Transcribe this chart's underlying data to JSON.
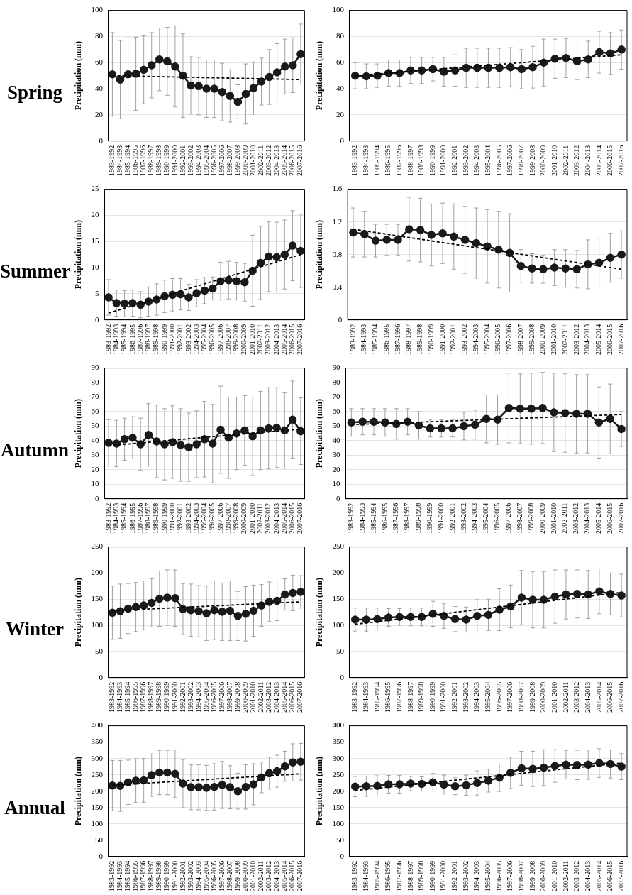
{
  "chart_data": [
    {
      "type": "line",
      "title": "Spring",
      "ylabel": "Precipitation (mm)",
      "categories": [
        "1983-1992",
        "1984-1993",
        "1985-1994",
        "1986-1995",
        "1987-1996",
        "1988-1997",
        "1989-1998",
        "1990-1999",
        "1991-2000",
        "1992-2001",
        "1993-2002",
        "1994-2003",
        "1995-2004",
        "1996-2005",
        "1997-2006",
        "1998-2007",
        "1999-2008",
        "2000-2009",
        "2001-2010",
        "2002-2011",
        "2003-2012",
        "2004-2013",
        "2005-2014",
        "2006-2015",
        "2007-2016"
      ],
      "ylim": [
        0,
        100
      ],
      "yticks": [
        0,
        20,
        40,
        60,
        80,
        100
      ],
      "grid": "y",
      "marker": "circle",
      "line_style": "solid",
      "series": [
        {
          "color": "#1a1a1a",
          "values": [
            51,
            47,
            51,
            51.5,
            54.5,
            58,
            62.5,
            61,
            57,
            50,
            42.5,
            42,
            40,
            40,
            37.5,
            34.5,
            30,
            36,
            40.5,
            45.5,
            49,
            52.5,
            57,
            58,
            66.5
          ],
          "errors": [
            32,
            30,
            28,
            28,
            26,
            25,
            24,
            26,
            31,
            32,
            22,
            22,
            22,
            22,
            22,
            20,
            13,
            23,
            20,
            18,
            21,
            22,
            21,
            21,
            23
          ]
        },
        {
          "type": "line",
          "color": "#000000",
          "line_style": "dashed",
          "marker": "none",
          "x": [
            "1983-1992",
            "2007-2016"
          ],
          "values": [
            50,
            47
          ]
        }
      ]
    },
    {
      "type": "line",
      "ylabel": "Precipitation (mm)",
      "categories": [
        "1983-1992",
        "1984-1993",
        "1985-1994",
        "1986-1995",
        "1987-1996",
        "1988-1997",
        "1989-1998",
        "1990-1999",
        "1991-2000",
        "1992-2001",
        "1993-2002",
        "1994-2003",
        "1995-2004",
        "1996-2005",
        "1997-2006",
        "1998-2007",
        "1999-2008",
        "2000-2009",
        "2001-2010",
        "2002-2011",
        "2003-2012",
        "2004-2013",
        "2005-2014",
        "2006-2015",
        "2007-2016"
      ],
      "ylim": [
        0,
        100
      ],
      "yticks": [
        0,
        20,
        40,
        60,
        80,
        100
      ],
      "grid": "y",
      "marker": "circle",
      "line_style": "solid",
      "series": [
        {
          "color": "#1a1a1a",
          "values": [
            50,
            49.5,
            50,
            52,
            52,
            54,
            54,
            55,
            53,
            54,
            56,
            56,
            56,
            56,
            56.5,
            55,
            56.5,
            60,
            63,
            63.5,
            61,
            62.5,
            68,
            67,
            70
          ],
          "errors": [
            10,
            9.5,
            9,
            10,
            10,
            10,
            10,
            9,
            11,
            12,
            15,
            15,
            15,
            15,
            15,
            15,
            16,
            18,
            15,
            15,
            14,
            14,
            16,
            16,
            15
          ]
        },
        {
          "type": "line",
          "color": "#000000",
          "line_style": "dashed",
          "marker": "none",
          "x": [
            "1983-1992",
            "2007-2016"
          ],
          "values": [
            50,
            66
          ]
        }
      ]
    },
    {
      "type": "line",
      "title": "Summer",
      "ylabel": "Precipitation (mm)",
      "categories": [
        "1983-1992",
        "1984-1993",
        "1985-1994",
        "1986-1995",
        "1987-1996",
        "1988-1997",
        "1989-1998",
        "1990-1999",
        "1991-2000",
        "1992-2001",
        "1993-2002",
        "1994-2003",
        "1995-2004",
        "1996-2005",
        "1997-2006",
        "1998-2007",
        "1999-2008",
        "2000-2009",
        "2001-2010",
        "2002-2011",
        "2003-2012",
        "2004-2013",
        "2005-2014",
        "2006-2015",
        "2007-2016"
      ],
      "ylim": [
        0,
        25
      ],
      "yticks": [
        0,
        5,
        10,
        15,
        20,
        25
      ],
      "grid": "y",
      "marker": "circle",
      "line_style": "solid",
      "series": [
        {
          "color": "#1a1a1a",
          "values": [
            4.3,
            3.2,
            3.1,
            3.2,
            2.9,
            3.5,
            3.9,
            4.5,
            4.8,
            4.9,
            4.3,
            5.1,
            5.6,
            6,
            7.4,
            7.6,
            7.4,
            7.2,
            9.4,
            10.9,
            12.1,
            12,
            12.5,
            14.2,
            13.2
          ],
          "errors": [
            3.4,
            2.5,
            2.5,
            2.5,
            2.5,
            2.8,
            3,
            3.1,
            3.1,
            3,
            2.5,
            2.6,
            2.5,
            2.2,
            3.6,
            3.6,
            3.6,
            3.6,
            6.8,
            7,
            6.7,
            6.7,
            6.6,
            6.7,
            7
          ]
        },
        {
          "type": "line",
          "color": "#000000",
          "line_style": "dashed",
          "marker": "none",
          "x": [
            "1983-1992",
            "2007-2016"
          ],
          "values": [
            1.3,
            12.5
          ]
        }
      ]
    },
    {
      "type": "line",
      "ylabel": "Precipitation (mm)",
      "categories": [
        "1983-1992",
        "1984-1993",
        "1985-1994",
        "1986-1995",
        "1987-1996",
        "1988-1997",
        "1989-1998",
        "1990-1999",
        "1991-2000",
        "1992-2001",
        "1993-2002",
        "1994-2003",
        "1995-2004",
        "1996-2005",
        "1997-2006",
        "1998-2007",
        "1999-2008",
        "2000-2009",
        "2001-2010",
        "2002-2011",
        "2003-2012",
        "2004-2013",
        "2005-2014",
        "2006-2015",
        "2007-2016"
      ],
      "ylim": [
        0,
        1.6
      ],
      "yticks": [
        0,
        0.4,
        0.8,
        1.2,
        1.6
      ],
      "grid": "y",
      "marker": "circle",
      "line_style": "solid",
      "series": [
        {
          "color": "#1a1a1a",
          "values": [
            1.07,
            1.05,
            0.97,
            0.98,
            0.98,
            1.11,
            1.1,
            1.04,
            1.06,
            1.02,
            0.98,
            0.94,
            0.9,
            0.86,
            0.82,
            0.66,
            0.63,
            0.62,
            0.64,
            0.63,
            0.62,
            0.68,
            0.7,
            0.76,
            0.8
          ],
          "errors": [
            0.3,
            0.28,
            0.2,
            0.19,
            0.19,
            0.39,
            0.39,
            0.38,
            0.37,
            0.4,
            0.41,
            0.43,
            0.45,
            0.47,
            0.48,
            0.2,
            0.18,
            0.17,
            0.22,
            0.23,
            0.23,
            0.3,
            0.3,
            0.3,
            0.29
          ]
        },
        {
          "type": "line",
          "color": "#000000",
          "line_style": "dashed",
          "marker": "none",
          "x": [
            "1983-1992",
            "2007-2016"
          ],
          "values": [
            1.11,
            0.62
          ]
        }
      ]
    },
    {
      "type": "line",
      "title": "Autumn",
      "ylabel": "Precipitation (mm)",
      "categories": [
        "1983-1992",
        "1984-1993",
        "1985-1994",
        "1986-1995",
        "1987-1996",
        "1988-1997",
        "1989-1998",
        "1990-1999",
        "1991-2000",
        "1992-2001",
        "1993-2002",
        "1994-2003",
        "1995-2004",
        "1996-2005",
        "1997-2006",
        "1998-2007",
        "1999-2008",
        "2000-2009",
        "2001-2010",
        "2002-2011",
        "2003-2012",
        "2004-2013",
        "2005-2014",
        "2006-2015",
        "2007-2016"
      ],
      "ylim": [
        0,
        90
      ],
      "yticks": [
        0,
        10,
        20,
        30,
        40,
        50,
        60,
        70,
        80,
        90
      ],
      "grid": "y",
      "marker": "circle",
      "line_style": "solid",
      "series": [
        {
          "color": "#1a1a1a",
          "values": [
            38.5,
            38,
            41,
            42,
            37.5,
            44,
            39.5,
            37.5,
            39,
            37,
            35.5,
            37.5,
            41,
            38,
            47.5,
            42,
            45,
            47,
            43,
            47,
            48.5,
            49,
            47,
            54.5,
            46.5
          ],
          "errors": [
            16,
            16,
            14.5,
            14.5,
            18,
            21.5,
            25,
            24.5,
            25,
            25,
            23.5,
            23,
            26,
            27,
            30,
            28,
            25,
            24,
            27,
            27,
            28,
            27.5,
            26,
            26.5,
            23
          ]
        },
        {
          "type": "line",
          "color": "#000000",
          "line_style": "dashed",
          "marker": "none",
          "x": [
            "1983-1992",
            "2007-2016"
          ],
          "values": [
            36.5,
            48
          ]
        }
      ]
    },
    {
      "type": "line",
      "ylabel": "Precipitation (mm)",
      "categories": [
        "1983-1992",
        "1984-1993",
        "1985-1994",
        "1986-1995",
        "1987-1996",
        "1988-1997",
        "1989-1998",
        "1990-1999",
        "1991-2000",
        "1992-2001",
        "1993-2002",
        "1994-2003",
        "1995-2004",
        "1996-2005",
        "1997-2006",
        "1998-2007",
        "1999-2008",
        "2000-2009",
        "2001-2010",
        "2002-2011",
        "2003-2012",
        "2004-2013",
        "2005-2014",
        "2006-2015",
        "2007-2016"
      ],
      "ylim": [
        0,
        90
      ],
      "yticks": [
        0,
        10,
        20,
        30,
        40,
        50,
        60,
        70,
        80,
        90
      ],
      "grid": "y",
      "marker": "circle",
      "line_style": "solid",
      "series": [
        {
          "color": "#1a1a1a",
          "values": [
            52.5,
            53,
            53,
            52.5,
            51.5,
            53,
            50.5,
            48.5,
            48.5,
            48.5,
            50,
            51,
            55,
            54.5,
            62.5,
            62,
            62,
            62.5,
            59.5,
            59,
            58.5,
            58.5,
            52.5,
            55,
            48
          ],
          "errors": [
            9.5,
            9,
            9,
            9.5,
            10.5,
            9,
            9.5,
            6,
            6,
            6,
            9.5,
            10,
            16.5,
            17,
            24,
            24,
            24.5,
            24.5,
            27,
            27,
            27,
            27,
            24.5,
            24,
            12
          ]
        },
        {
          "type": "line",
          "color": "#000000",
          "line_style": "dashed",
          "marker": "none",
          "x": [
            "1983-1992",
            "2007-2016"
          ],
          "values": [
            51,
            58
          ]
        }
      ]
    },
    {
      "type": "line",
      "title": "Winter",
      "ylabel": "Precipitation (mm)",
      "categories": [
        "1983-1992",
        "1984-1993",
        "1985-1994",
        "1986-1995",
        "1987-1996",
        "1988-1997",
        "1989-1998",
        "1990-1999",
        "1991-2000",
        "1992-2001",
        "1993-2002",
        "1994-2003",
        "1995-2004",
        "1996-2005",
        "1997-2006",
        "1998-2007",
        "1999-2008",
        "2000-2009",
        "2001-2010",
        "2002-2011",
        "2003-2012",
        "2004-2013",
        "2005-2014",
        "2006-2015",
        "2007-2016"
      ],
      "ylim": [
        0,
        250
      ],
      "yticks": [
        0,
        50,
        100,
        150,
        200,
        250
      ],
      "grid": "y",
      "marker": "circle",
      "line_style": "solid",
      "series": [
        {
          "color": "#1a1a1a",
          "values": [
            124,
            127,
            132,
            135,
            138,
            143,
            151,
            153,
            152,
            131,
            129,
            127,
            123,
            129,
            126,
            128,
            118,
            122,
            128,
            138,
            145,
            147,
            159,
            162,
            164
          ],
          "errors": [
            51,
            52,
            48,
            47,
            47,
            46,
            53,
            53,
            54,
            49,
            50,
            49,
            52,
            56,
            55,
            57,
            47,
            52,
            49,
            40,
            38,
            38,
            30,
            34,
            31
          ]
        },
        {
          "type": "line",
          "color": "#000000",
          "line_style": "dashed",
          "marker": "none",
          "x": [
            "1983-1992",
            "2007-2016"
          ],
          "values": [
            128,
            145
          ]
        }
      ]
    },
    {
      "type": "line",
      "ylabel": "Precipitation (mm)",
      "categories": [
        "1983-1992",
        "1984-1993",
        "1985-1994",
        "1986-1995",
        "1987-1996",
        "1988-1997",
        "1989-1998",
        "1990-1999",
        "1991-2000",
        "1992-2001",
        "1993-2002",
        "1994-2003",
        "1995-2004",
        "1996-2005",
        "1997-2006",
        "1998-2007",
        "1999-2008",
        "2000-2009",
        "2001-2010",
        "2002-2011",
        "2003-2012",
        "2004-2013",
        "2005-2014",
        "2006-2015",
        "2007-2016"
      ],
      "ylim": [
        0,
        250
      ],
      "yticks": [
        0,
        50,
        100,
        150,
        200,
        250
      ],
      "grid": "y",
      "marker": "circle",
      "line_style": "solid",
      "series": [
        {
          "color": "#1a1a1a",
          "values": [
            111,
            111,
            112,
            115,
            116,
            116,
            116,
            122,
            118,
            112,
            111,
            118,
            120,
            130,
            136,
            153,
            149,
            149,
            155,
            159,
            160,
            159,
            165,
            160,
            157
          ],
          "errors": [
            22,
            22,
            21,
            17,
            16,
            17,
            17,
            24,
            24,
            24,
            24,
            31,
            30,
            40,
            41,
            52,
            54,
            54,
            51,
            47,
            46,
            46,
            43,
            40,
            41
          ]
        },
        {
          "type": "line",
          "color": "#000000",
          "line_style": "dashed",
          "marker": "none",
          "x": [
            "1983-1992",
            "2007-2016"
          ],
          "values": [
            102,
            163
          ]
        }
      ]
    },
    {
      "type": "line",
      "title": "Annual",
      "ylabel": "Precipitation (mm)",
      "categories": [
        "1983-1992",
        "1984-1993",
        "1985-1994",
        "1986-1995",
        "1987-1996",
        "1988-1997",
        "1989-1998",
        "1990-1999",
        "1991-2000",
        "1992-2001",
        "1993-2002",
        "1994-2003",
        "1995-2004",
        "1996-2005",
        "1997-2006",
        "1998-2007",
        "1999-2008",
        "2000-2009",
        "2001-2010",
        "2002-2011",
        "2003-2012",
        "2004-2013",
        "2005-2014",
        "2006-2015",
        "2007-2016"
      ],
      "ylim": [
        0,
        400
      ],
      "yticks": [
        0,
        50,
        100,
        150,
        200,
        250,
        300,
        350,
        400
      ],
      "grid": "y",
      "marker": "circle",
      "line_style": "solid",
      "series": [
        {
          "color": "#1a1a1a",
          "values": [
            217,
            216,
            227,
            232,
            233,
            249,
            257,
            257,
            253,
            223,
            212,
            212,
            210,
            213,
            219,
            212,
            200,
            213,
            221,
            242,
            255,
            261,
            276,
            288,
            290
          ],
          "errors": [
            77,
            78,
            68,
            67,
            67,
            65,
            68,
            68,
            73,
            74,
            69,
            69,
            69,
            71,
            72,
            66,
            55,
            68,
            63,
            47,
            49,
            49,
            46,
            57,
            56
          ]
        },
        {
          "type": "line",
          "color": "#000000",
          "line_style": "dashed",
          "marker": "none",
          "x": [
            "1983-1992",
            "2007-2016"
          ],
          "values": [
            218,
            253
          ]
        }
      ]
    },
    {
      "type": "line",
      "ylabel": "Precipitation (mm)",
      "categories": [
        "1983-1992",
        "1984-1993",
        "1985-1994",
        "1986-1995",
        "1987-1996",
        "1988-1997",
        "1989-1998",
        "1990-1999",
        "1991-2000",
        "1992-2001",
        "1993-2002",
        "1994-2003",
        "1995-2004",
        "1996-2005",
        "1997-2006",
        "1998-2007",
        "1999-2008",
        "2000-2009",
        "2001-2010",
        "2002-2011",
        "2003-2012",
        "2004-2013",
        "2005-2014",
        "2006-2015",
        "2007-2016"
      ],
      "ylim": [
        0,
        400
      ],
      "yticks": [
        0,
        50,
        100,
        150,
        200,
        250,
        300,
        350,
        400
      ],
      "grid": "y",
      "marker": "circle",
      "line_style": "solid",
      "series": [
        {
          "color": "#1a1a1a",
          "values": [
            214,
            215,
            216,
            221,
            221,
            223,
            222,
            227,
            220,
            215,
            218,
            225,
            232,
            241,
            256,
            270,
            268,
            272,
            277,
            281,
            280,
            281,
            286,
            283,
            275
          ],
          "errors": [
            31,
            31,
            31,
            27,
            27,
            22,
            22,
            27,
            29,
            26,
            31,
            37,
            35,
            42,
            48,
            52,
            54,
            55,
            50,
            44,
            45,
            45,
            44,
            43,
            40
          ]
        },
        {
          "type": "line",
          "color": "#000000",
          "line_style": "dashed",
          "marker": "none",
          "x": [
            "1983-1992",
            "2007-2016"
          ],
          "values": [
            202,
            286
          ]
        }
      ]
    }
  ]
}
